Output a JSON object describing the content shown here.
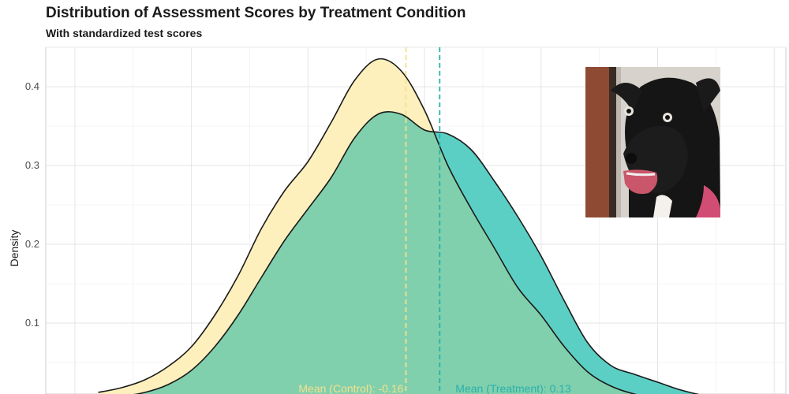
{
  "chart_data": {
    "type": "area",
    "title": "Distribution of Assessment Scores by Treatment Condition",
    "subtitle": "With standardized test scores",
    "xlabel": "",
    "ylabel": "Density",
    "xlim": [
      -3.25,
      3.1
    ],
    "ylim": [
      0,
      0.45
    ],
    "yticks": [
      0.1,
      0.2,
      0.3,
      0.4
    ],
    "grid": true,
    "series": [
      {
        "name": "Control",
        "color": "#fdf0bd",
        "x": [
          -2.8,
          -2.6,
          -2.4,
          -2.2,
          -2.0,
          -1.8,
          -1.6,
          -1.4,
          -1.2,
          -1.0,
          -0.8,
          -0.6,
          -0.4,
          -0.2,
          0.0,
          0.2,
          0.4,
          0.6,
          0.8,
          1.0,
          1.2,
          1.4,
          1.6,
          1.8,
          2.0,
          2.2,
          2.4,
          2.6
        ],
        "y": [
          0.012,
          0.018,
          0.028,
          0.045,
          0.07,
          0.11,
          0.16,
          0.22,
          0.268,
          0.305,
          0.355,
          0.408,
          0.435,
          0.42,
          0.37,
          0.3,
          0.245,
          0.195,
          0.145,
          0.11,
          0.07,
          0.038,
          0.02,
          0.01,
          0.005,
          0.002,
          0.001,
          0.0
        ]
      },
      {
        "name": "Treatment",
        "color": "#5ccfc5",
        "x": [
          -2.8,
          -2.6,
          -2.4,
          -2.2,
          -2.0,
          -1.8,
          -1.6,
          -1.4,
          -1.2,
          -1.0,
          -0.8,
          -0.6,
          -0.4,
          -0.2,
          0.0,
          0.2,
          0.4,
          0.6,
          0.8,
          1.0,
          1.2,
          1.4,
          1.6,
          1.8,
          2.0,
          2.2,
          2.4,
          2.6,
          2.8
        ],
        "y": [
          0.003,
          0.007,
          0.012,
          0.022,
          0.04,
          0.07,
          0.11,
          0.158,
          0.205,
          0.245,
          0.285,
          0.335,
          0.365,
          0.365,
          0.345,
          0.34,
          0.32,
          0.28,
          0.235,
          0.185,
          0.128,
          0.075,
          0.046,
          0.035,
          0.025,
          0.015,
          0.008,
          0.004,
          0.001
        ]
      }
    ],
    "means": [
      {
        "label": "Mean (Control): -0.16",
        "value": -0.16,
        "color": "#f7e08a"
      },
      {
        "label": "Mean (Treatment): 0.13",
        "value": 0.13,
        "color": "#2ab0ab"
      }
    ],
    "overlap_color": "#80d0ad"
  },
  "image": {
    "subject": "dog-photo"
  }
}
